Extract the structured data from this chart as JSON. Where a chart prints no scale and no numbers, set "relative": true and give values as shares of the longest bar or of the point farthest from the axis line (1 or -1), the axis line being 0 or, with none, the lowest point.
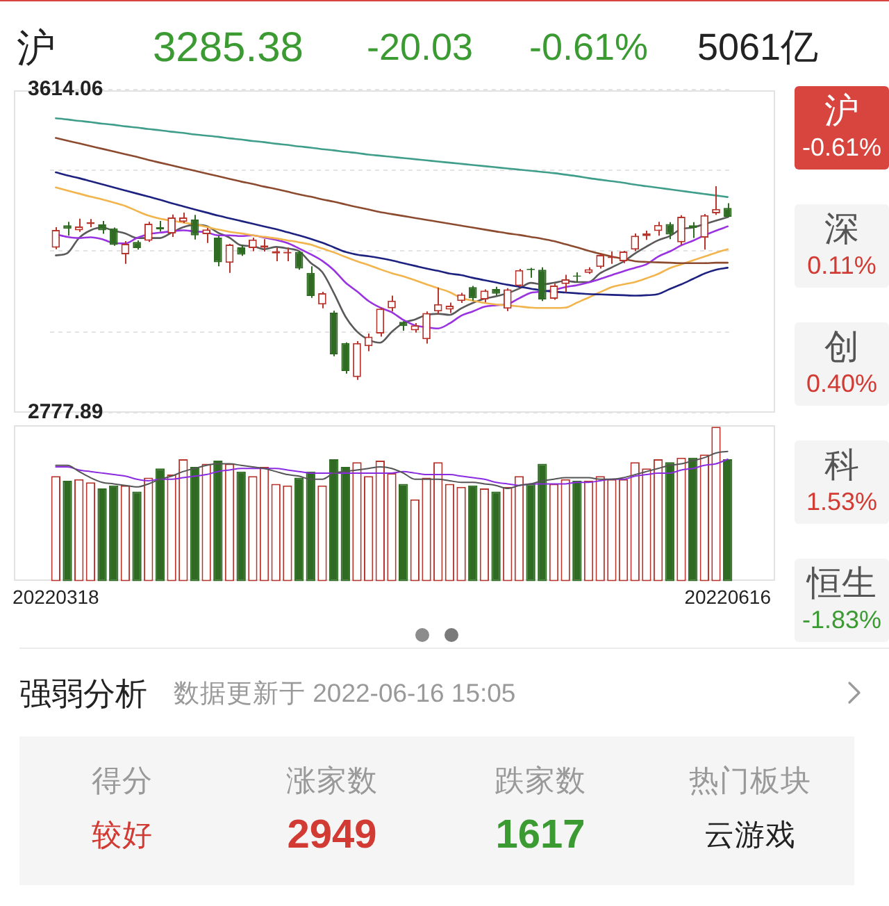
{
  "chart_data": [
    {
      "type": "other",
      "annotations": [
        "沪",
        "3285.38",
        "-20.03",
        "-0.61%",
        "5061亿"
      ]
    },
    {
      "type": "candlestick",
      "categories": [
        "20220318",
        null,
        null,
        null,
        null,
        null,
        null,
        null,
        null,
        null,
        null,
        null,
        null,
        null,
        null,
        null,
        null,
        null,
        null,
        null,
        null,
        null,
        null,
        null,
        null,
        null,
        null,
        null,
        null,
        null,
        null,
        null,
        null,
        null,
        null,
        null,
        null,
        null,
        null,
        null,
        null,
        null,
        null,
        null,
        null,
        null,
        null,
        null,
        null,
        null,
        null,
        null,
        null,
        null,
        null,
        null,
        null,
        null,
        "20220616"
      ],
      "ohlc": [
        [
          3205,
          3258,
          3201,
          3251
        ],
        [
          3263,
          3272,
          3236,
          3254
        ],
        [
          3250,
          3280,
          3246,
          3260
        ],
        [
          3266,
          3279,
          3258,
          3271
        ],
        [
          3265,
          3274,
          3241,
          3250
        ],
        [
          3255,
          3257,
          3210,
          3212
        ],
        [
          3188,
          3222,
          3163,
          3215
        ],
        [
          3220,
          3224,
          3200,
          3204
        ],
        [
          3223,
          3272,
          3220,
          3267
        ],
        [
          3258,
          3274,
          3247,
          3252
        ],
        [
          3242,
          3291,
          3233,
          3283
        ],
        [
          3272,
          3296,
          3269,
          3283
        ],
        [
          3278,
          3290,
          3226,
          3237
        ],
        [
          3240,
          3256,
          3217,
          3252
        ],
        [
          3231,
          3236,
          3157,
          3167
        ],
        [
          3166,
          3215,
          3140,
          3213
        ],
        [
          3206,
          3212,
          3184,
          3187
        ],
        [
          3204,
          3231,
          3196,
          3226
        ],
        [
          3205,
          3227,
          3195,
          3211
        ],
        [
          3190,
          3205,
          3170,
          3196
        ],
        [
          3190,
          3205,
          3170,
          3194
        ],
        [
          3194,
          3197,
          3148,
          3151
        ],
        [
          3140,
          3157,
          3075,
          3080
        ],
        [
          3058,
          3091,
          3048,
          3087
        ],
        [
          3037,
          3042,
          2924,
          2929
        ],
        [
          2958,
          2960,
          2879,
          2886
        ],
        [
          2870,
          2963,
          2863,
          2958
        ],
        [
          2950,
          2983,
          2937,
          2975
        ],
        [
          2983,
          3050,
          2975,
          3047
        ],
        [
          3048,
          3081,
          3040,
          3068
        ],
        [
          3013,
          3015,
          2990,
          3002
        ],
        [
          2991,
          3010,
          2985,
          3004
        ],
        [
          2968,
          3040,
          2957,
          3036
        ],
        [
          3040,
          3102,
          3033,
          3059
        ],
        [
          3045,
          3063,
          3036,
          3055
        ],
        [
          3067,
          3088,
          3062,
          3084
        ],
        [
          3103,
          3106,
          3068,
          3074
        ],
        [
          3071,
          3097,
          3064,
          3094
        ],
        [
          3098,
          3104,
          3081,
          3086
        ],
        [
          3047,
          3100,
          3041,
          3097
        ],
        [
          3106,
          3150,
          3104,
          3147
        ],
        [
          3150,
          3153,
          3127,
          3147
        ],
        [
          3148,
          3154,
          3067,
          3071
        ],
        [
          3073,
          3112,
          3070,
          3107
        ],
        [
          3111,
          3135,
          3090,
          3123
        ],
        [
          3133,
          3141,
          3115,
          3130
        ],
        [
          3140,
          3154,
          3137,
          3149
        ],
        [
          3155,
          3191,
          3151,
          3186
        ],
        [
          3178,
          3195,
          3163,
          3182
        ],
        [
          3170,
          3197,
          3165,
          3195
        ],
        [
          3200,
          3242,
          3196,
          3236
        ],
        [
          3235,
          3249,
          3225,
          3242
        ],
        [
          3248,
          3272,
          3236,
          3264
        ],
        [
          3266,
          3271,
          3227,
          3239
        ],
        [
          3219,
          3289,
          3212,
          3285
        ],
        [
          3263,
          3271,
          3230,
          3256
        ],
        [
          3231,
          3292,
          3200,
          3289
        ],
        [
          3294,
          3364,
          3290,
          3305
        ],
        [
          3308,
          3320,
          3283,
          3285
        ]
      ],
      "colors": [
        "#b8352d",
        "#2f6b22",
        "#b8352d",
        "#b8352d",
        "#2f6b22",
        "#2f6b22",
        "#b8352d",
        "#2f6b22",
        "#b8352d",
        "#2f6b22",
        "#b8352d",
        "#b8352d",
        "#2f6b22",
        "#b8352d",
        "#2f6b22",
        "#b8352d",
        "#2f6b22",
        "#b8352d",
        "#b8352d",
        "#b8352d",
        "#b8352d",
        "#2f6b22",
        "#2f6b22",
        "#b8352d",
        "#2f6b22",
        "#2f6b22",
        "#b8352d",
        "#b8352d",
        "#b8352d",
        "#b8352d",
        "#2f6b22",
        "#b8352d",
        "#b8352d",
        "#b8352d",
        "#b8352d",
        "#b8352d",
        "#2f6b22",
        "#b8352d",
        "#2f6b22",
        "#b8352d",
        "#b8352d",
        "#2f6b22",
        "#2f6b22",
        "#b8352d",
        "#b8352d",
        "#2f6b22",
        "#b8352d",
        "#b8352d",
        "#b8352d",
        "#b8352d",
        "#b8352d",
        "#b8352d",
        "#b8352d",
        "#2f6b22",
        "#b8352d",
        "#2f6b22",
        "#b8352d",
        "#b8352d",
        "#2f6b22"
      ],
      "series": [
        {
          "type": "line",
          "color": "#3f9e8a",
          "values": [
            3540,
            3537,
            3533,
            3530,
            3526,
            3523,
            3519,
            3516,
            3512,
            3509,
            3505,
            3502,
            3498,
            3495,
            3492,
            3488,
            3485,
            3481,
            3478,
            3474,
            3471,
            3467,
            3464,
            3460,
            3457,
            3453,
            3450,
            3446,
            3443,
            3440,
            3437,
            3434,
            3431,
            3428,
            3425,
            3422,
            3419,
            3416,
            3413,
            3410,
            3407,
            3404,
            3401,
            3398,
            3394,
            3390,
            3385,
            3381,
            3377,
            3373,
            3368,
            3364,
            3360,
            3356,
            3352,
            3348,
            3344,
            3340,
            3336
          ]
        },
        {
          "type": "line",
          "color": "#8c4b2f",
          "values": [
            3489,
            3482,
            3475,
            3468,
            3461,
            3454,
            3447,
            3440,
            3432,
            3425,
            3418,
            3411,
            3404,
            3397,
            3390,
            3383,
            3376,
            3370,
            3363,
            3357,
            3350,
            3343,
            3337,
            3330,
            3324,
            3317,
            3310,
            3304,
            3297,
            3292,
            3287,
            3282,
            3277,
            3272,
            3267,
            3262,
            3257,
            3252,
            3247,
            3242,
            3238,
            3233,
            3228,
            3222,
            3214,
            3206,
            3197,
            3189,
            3182,
            3176,
            3170,
            3168,
            3167,
            3166,
            3165,
            3165,
            3165,
            3166,
            3166
          ]
        },
        {
          "type": "line",
          "color": "#1d2280",
          "values": [
            3400,
            3392,
            3385,
            3377,
            3369,
            3361,
            3353,
            3345,
            3337,
            3329,
            3320,
            3312,
            3304,
            3296,
            3288,
            3281,
            3274,
            3267,
            3260,
            3253,
            3245,
            3237,
            3228,
            3218,
            3206,
            3194,
            3187,
            3183,
            3178,
            3172,
            3165,
            3158,
            3151,
            3145,
            3138,
            3134,
            3127,
            3121,
            3115,
            3109,
            3104,
            3099,
            3094,
            3091,
            3089,
            3087,
            3085,
            3084,
            3083,
            3082,
            3081,
            3082,
            3085,
            3098,
            3110,
            3124,
            3138,
            3148,
            3153
          ]
        },
        {
          "type": "line",
          "color": "#f2b44c",
          "values": [
            3361,
            3353,
            3345,
            3337,
            3330,
            3322,
            3313,
            3300,
            3288,
            3280,
            3275,
            3270,
            3265,
            3259,
            3252,
            3246,
            3242,
            3237,
            3233,
            3229,
            3224,
            3219,
            3213,
            3203,
            3193,
            3181,
            3170,
            3160,
            3149,
            3139,
            3131,
            3121,
            3110,
            3100,
            3090,
            3075,
            3068,
            3062,
            3058,
            3056,
            3053,
            3050,
            3049,
            3049,
            3050,
            3063,
            3076,
            3090,
            3103,
            3110,
            3116,
            3126,
            3137,
            3152,
            3162,
            3172,
            3182,
            3192,
            3201
          ]
        },
        {
          "type": "line",
          "color": "#9932e0",
          "values": [
            3240,
            3233,
            3230,
            3232,
            3227,
            3217,
            3216,
            3230,
            3240,
            3244,
            3247,
            3250,
            3247,
            3245,
            3237,
            3237,
            3235,
            3237,
            3231,
            3225,
            3217,
            3203,
            3188,
            3171,
            3147,
            3115,
            3092,
            3067,
            3050,
            3038,
            3018,
            3004,
            2999,
            2996,
            3009,
            3029,
            3040,
            3052,
            3056,
            3059,
            3074,
            3088,
            3091,
            3096,
            3103,
            3108,
            3115,
            3124,
            3134,
            3144,
            3153,
            3162,
            3182,
            3195,
            3211,
            3223,
            3237,
            3249,
            3260
          ]
        },
        {
          "type": "line",
          "color": "#5a5a5a",
          "values": [
            3185,
            3191,
            3230,
            3250,
            3257,
            3249,
            3242,
            3230,
            3230,
            3230,
            3244,
            3258,
            3264,
            3261,
            3244,
            3231,
            3211,
            3209,
            3201,
            3207,
            3203,
            3196,
            3166,
            3142,
            3088,
            3027,
            2988,
            2967,
            2959,
            2987,
            3010,
            3019,
            3031,
            3034,
            3031,
            3048,
            3062,
            3073,
            3079,
            3087,
            3099,
            3114,
            3110,
            3114,
            3119,
            3116,
            3116,
            3139,
            3154,
            3169,
            3190,
            3208,
            3224,
            3235,
            3253,
            3257,
            3266,
            3275,
            3284
          ]
        }
      ],
      "ylim": [
        2777.89,
        3614.06
      ],
      "yticks": [
        2777.89,
        {
          "value": 2986.93,
          "label": null
        },
        {
          "value": 3195.98,
          "label": null
        },
        {
          "value": 3405.02,
          "label": null
        },
        3614.06
      ],
      "grid": "y",
      "tick_labels": "y"
    },
    {
      "type": "bar",
      "categories": [
        "20220318",
        null,
        null,
        null,
        null,
        null,
        null,
        null,
        null,
        null,
        null,
        null,
        null,
        null,
        null,
        null,
        null,
        null,
        null,
        null,
        null,
        null,
        null,
        null,
        null,
        null,
        null,
        null,
        null,
        null,
        null,
        null,
        null,
        null,
        null,
        null,
        null,
        null,
        null,
        null,
        null,
        null,
        null,
        null,
        null,
        null,
        null,
        null,
        null,
        null,
        null,
        null,
        null,
        null,
        null,
        null,
        null,
        null,
        "20220616"
      ],
      "relative": true,
      "series": [
        {
          "type": "bar",
          "colors": [
            "#b8352d",
            "#2f6b22",
            "#b8352d",
            "#b8352d",
            "#2f6b22",
            "#2f6b22",
            "#b8352d",
            "#2f6b22",
            "#b8352d",
            "#2f6b22",
            "#b8352d",
            "#b8352d",
            "#2f6b22",
            "#b8352d",
            "#2f6b22",
            "#b8352d",
            "#2f6b22",
            "#b8352d",
            "#b8352d",
            "#b8352d",
            "#b8352d",
            "#2f6b22",
            "#2f6b22",
            "#b8352d",
            "#2f6b22",
            "#2f6b22",
            "#b8352d",
            "#b8352d",
            "#b8352d",
            "#b8352d",
            "#2f6b22",
            "#b8352d",
            "#b8352d",
            "#b8352d",
            "#b8352d",
            "#b8352d",
            "#2f6b22",
            "#b8352d",
            "#2f6b22",
            "#b8352d",
            "#b8352d",
            "#2f6b22",
            "#2f6b22",
            "#b8352d",
            "#b8352d",
            "#2f6b22",
            "#b8352d",
            "#b8352d",
            "#b8352d",
            "#b8352d",
            "#b8352d",
            "#b8352d",
            "#b8352d",
            "#2f6b22",
            "#b8352d",
            "#2f6b22",
            "#b8352d",
            "#b8352d",
            "#2f6b22"
          ],
          "values": [
            0.68,
            0.65,
            0.66,
            0.64,
            0.6,
            0.62,
            0.62,
            0.58,
            0.67,
            0.73,
            0.69,
            0.79,
            0.74,
            0.76,
            0.78,
            0.76,
            0.71,
            0.68,
            0.74,
            0.63,
            0.62,
            0.67,
            0.71,
            0.62,
            0.79,
            0.74,
            0.77,
            0.68,
            0.78,
            0.7,
            0.63,
            0.53,
            0.67,
            0.77,
            0.63,
            0.61,
            0.62,
            0.6,
            0.58,
            0.61,
            0.68,
            0.63,
            0.76,
            0.63,
            0.66,
            0.65,
            0.65,
            0.68,
            0.66,
            0.66,
            0.77,
            0.73,
            0.79,
            0.77,
            0.8,
            0.8,
            0.82,
            1,
            0.79
          ]
        },
        {
          "type": "line",
          "color": "#555555",
          "values": [
            0.75,
            0.75,
            0.71,
            0.67,
            0.64,
            0.63,
            0.62,
            0.61,
            0.63,
            0.66,
            0.68,
            0.71,
            0.73,
            0.75,
            0.76,
            0.76,
            0.75,
            0.74,
            0.73,
            0.71,
            0.69,
            0.68,
            0.66,
            0.66,
            0.7,
            0.71,
            0.72,
            0.73,
            0.74,
            0.73,
            0.7,
            0.66,
            0.66,
            0.66,
            0.65,
            0.64,
            0.64,
            0.63,
            0.62,
            0.6,
            0.62,
            0.63,
            0.65,
            0.66,
            0.67,
            0.67,
            0.67,
            0.66,
            0.66,
            0.67,
            0.69,
            0.71,
            0.73,
            0.75,
            0.76,
            0.78,
            0.8,
            0.83,
            0.84
          ]
        },
        {
          "type": "line",
          "color": "#8a2be2",
          "values": [
            0.74,
            0.74,
            0.72,
            0.71,
            0.7,
            0.69,
            0.68,
            0.66,
            0.65,
            0.66,
            0.66,
            0.67,
            0.68,
            0.69,
            0.71,
            0.72,
            0.73,
            0.73,
            0.73,
            0.73,
            0.72,
            0.71,
            0.7,
            0.7,
            0.7,
            0.7,
            0.7,
            0.7,
            0.7,
            0.7,
            0.71,
            0.7,
            0.69,
            0.69,
            0.69,
            0.68,
            0.67,
            0.66,
            0.64,
            0.63,
            0.62,
            0.63,
            0.63,
            0.63,
            0.63,
            0.64,
            0.64,
            0.65,
            0.66,
            0.66,
            0.68,
            0.69,
            0.7,
            0.7,
            0.72,
            0.73,
            0.75,
            0.76,
            0.79
          ]
        }
      ],
      "tick_labels": "x"
    },
    {
      "type": "other",
      "annotations": [
        "沪",
        "-0.61%",
        "深",
        "0.11%",
        "创",
        "0.40%",
        "科",
        "1.53%",
        "恒生",
        "-1.83%"
      ]
    },
    {
      "type": "other",
      "title": "强弱分析",
      "subtitle": "数据更新于 2022-06-16 15:05",
      "annotations": [
        "得分",
        "较好",
        "涨家数",
        "2949",
        "跌家数",
        "1617",
        "热门板块",
        "云游戏"
      ]
    }
  ]
}
